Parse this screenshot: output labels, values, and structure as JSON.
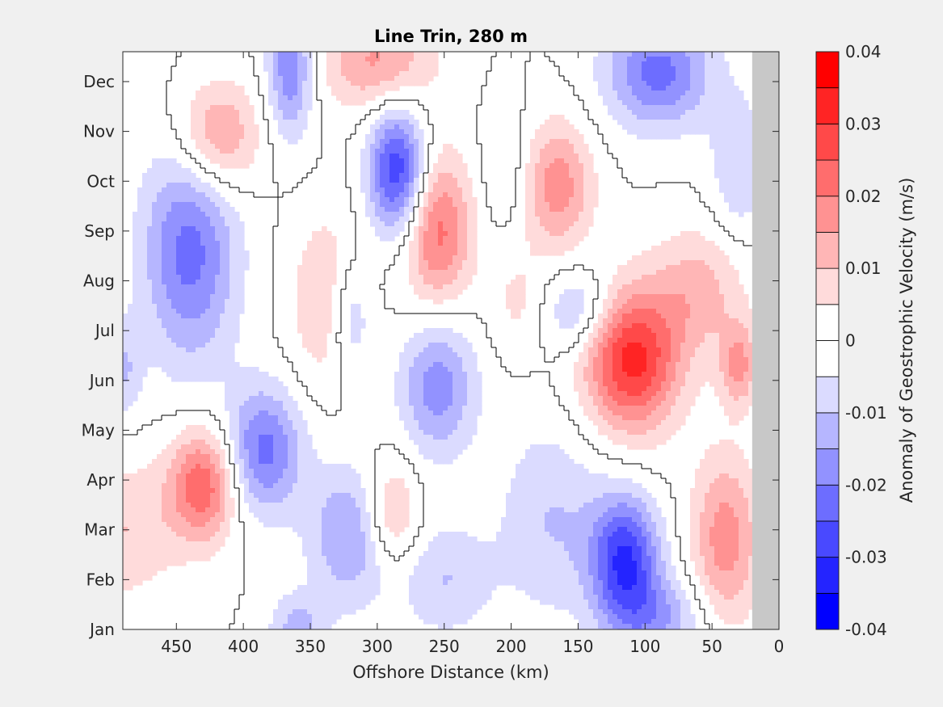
{
  "chart_data": {
    "type": "heatmap",
    "title": "Line Trin, 280 m",
    "xlabel": "Offshore Distance (km)",
    "ylabel": "",
    "colorbar_label": "Anomaly of Geostrophic Velocity (m/s)",
    "x_ticks": [
      450,
      400,
      350,
      300,
      250,
      200,
      150,
      100,
      50,
      0
    ],
    "x_reversed": true,
    "xlim": [
      490,
      0
    ],
    "y_ticks": [
      "Jan",
      "Feb",
      "Mar",
      "Apr",
      "May",
      "Jun",
      "Jul",
      "Aug",
      "Sep",
      "Oct",
      "Nov",
      "Dec"
    ],
    "ylim_months": [
      1,
      12.6
    ],
    "colorbar_ticks": [
      "0.04",
      "0.03",
      "0.02",
      "0.01",
      "0",
      "-0.01",
      "-0.02",
      "-0.03",
      "-0.04"
    ],
    "clim": [
      -0.04,
      0.04
    ],
    "levels": [
      -0.04,
      -0.035,
      -0.03,
      -0.025,
      -0.02,
      -0.015,
      -0.01,
      -0.005,
      0,
      0.005,
      0.01,
      0.015,
      0.02,
      0.025,
      0.03,
      0.035,
      0.04
    ],
    "colors": {
      "negative_max": "#0000ff",
      "positive_max": "#ff0000",
      "neutral": "#ffffff",
      "land_mask": "#c8c8c8",
      "zero_contour": "#000000"
    },
    "land_mask_x": [
      20,
      0
    ],
    "anomaly_features": [
      {
        "x": 110,
        "month": 6.4,
        "value": 0.032,
        "sx": 25,
        "sy": 1.0
      },
      {
        "x": 255,
        "month": 9.0,
        "value": 0.022,
        "sx": 18,
        "sy": 1.1
      },
      {
        "x": 285,
        "month": 10.2,
        "value": -0.03,
        "sx": 15,
        "sy": 0.9
      },
      {
        "x": 430,
        "month": 3.9,
        "value": 0.024,
        "sx": 18,
        "sy": 0.8
      },
      {
        "x": 385,
        "month": 4.6,
        "value": -0.022,
        "sx": 20,
        "sy": 0.9
      },
      {
        "x": 440,
        "month": 8.6,
        "value": -0.022,
        "sx": 25,
        "sy": 1.6
      },
      {
        "x": 420,
        "month": 10.9,
        "value": 0.018,
        "sx": 22,
        "sy": 0.8
      },
      {
        "x": 115,
        "month": 2.4,
        "value": -0.03,
        "sx": 18,
        "sy": 0.9
      },
      {
        "x": 90,
        "month": 12.2,
        "value": -0.022,
        "sx": 28,
        "sy": 0.8
      },
      {
        "x": 365,
        "month": 12.3,
        "value": -0.02,
        "sx": 12,
        "sy": 1.0
      },
      {
        "x": 300,
        "month": 12.4,
        "value": 0.016,
        "sx": 30,
        "sy": 0.7
      },
      {
        "x": 165,
        "month": 9.9,
        "value": 0.018,
        "sx": 18,
        "sy": 0.9
      },
      {
        "x": 255,
        "month": 5.9,
        "value": -0.018,
        "sx": 20,
        "sy": 1.0
      },
      {
        "x": 320,
        "month": 2.9,
        "value": -0.016,
        "sx": 22,
        "sy": 1.0
      },
      {
        "x": 320,
        "month": 7.3,
        "value": -0.014,
        "sx": 12,
        "sy": 0.9
      },
      {
        "x": 290,
        "month": 3.3,
        "value": 0.014,
        "sx": 15,
        "sy": 0.8
      },
      {
        "x": 335,
        "month": 7.6,
        "value": 0.012,
        "sx": 20,
        "sy": 1.2
      },
      {
        "x": 150,
        "month": 7.4,
        "value": -0.012,
        "sx": 18,
        "sy": 0.6
      },
      {
        "x": 40,
        "month": 2.8,
        "value": 0.018,
        "sx": 18,
        "sy": 1.2
      },
      {
        "x": 30,
        "month": 6.3,
        "value": 0.016,
        "sx": 10,
        "sy": 0.6
      },
      {
        "x": 60,
        "month": 7.8,
        "value": 0.012,
        "sx": 25,
        "sy": 0.9
      },
      {
        "x": 170,
        "month": 3.2,
        "value": -0.01,
        "sx": 28,
        "sy": 1.4
      },
      {
        "x": 90,
        "month": 1.2,
        "value": -0.014,
        "sx": 25,
        "sy": 0.6
      },
      {
        "x": 360,
        "month": 1.0,
        "value": -0.012,
        "sx": 15,
        "sy": 0.5
      },
      {
        "x": 490,
        "month": 3.0,
        "value": 0.01,
        "sx": 30,
        "sy": 1.0
      },
      {
        "x": 490,
        "month": 6.2,
        "value": -0.01,
        "sx": 10,
        "sy": 0.7
      },
      {
        "x": 195,
        "month": 7.6,
        "value": 0.006,
        "sx": 15,
        "sy": 0.8
      },
      {
        "x": 30,
        "month": 10.3,
        "value": -0.01,
        "sx": 15,
        "sy": 1.0
      },
      {
        "x": 205,
        "month": 10.3,
        "value": -0.006,
        "sx": 12,
        "sy": 0.9
      },
      {
        "x": 250,
        "month": 2.0,
        "value": -0.01,
        "sx": 25,
        "sy": 0.8
      }
    ]
  }
}
